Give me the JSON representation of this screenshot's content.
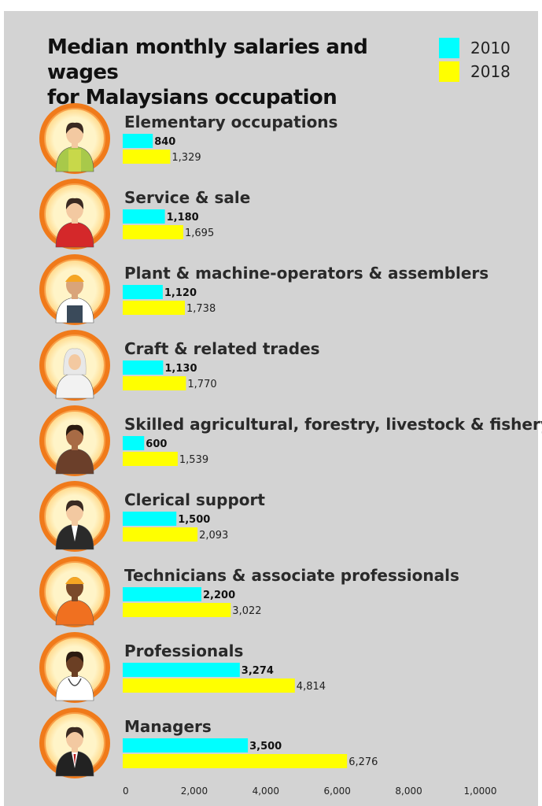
{
  "title_lines": [
    "Median monthly salaries and wages",
    "for Malaysians occupation"
  ],
  "colors": {
    "c2010": "#00ffff",
    "c2018": "#ffff00",
    "panel": "#d3d3d3"
  },
  "chart_data": {
    "type": "bar",
    "orientation": "horizontal",
    "title": "Median monthly salaries and wages for Malaysians occupation",
    "categories": [
      "Elementary occupations",
      "Service & sale",
      "Plant & machine-operators & assemblers",
      "Craft & related trades",
      "Skilled agricultural, forestry, livestock & fishery",
      "Clerical support",
      "Technicians & associate professionals",
      "Professionals",
      "Managers"
    ],
    "icons": [
      "elementary-worker-icon",
      "sales-worker-icon",
      "machine-operator-icon",
      "craft-worker-icon",
      "farmer-icon",
      "clerk-icon",
      "technician-icon",
      "doctor-icon",
      "manager-icon"
    ],
    "series": [
      {
        "name": "2010",
        "color": "#00ffff",
        "values": [
          840,
          1180,
          1120,
          1130,
          600,
          1500,
          2200,
          3274,
          3500
        ],
        "labels": [
          "840",
          "1,180",
          "1,120",
          "1,130",
          "600",
          "1,500",
          "2,200",
          "3,274",
          "3,500"
        ]
      },
      {
        "name": "2018",
        "color": "#ffff00",
        "values": [
          1329,
          1695,
          1738,
          1770,
          1539,
          2093,
          3022,
          4814,
          6276
        ],
        "labels": [
          "1,329",
          "1,695",
          "1,738",
          "1,770",
          "1,539",
          "2,093",
          "3,022",
          "4,814",
          "6,276"
        ]
      }
    ],
    "xlim": [
      0,
      10000
    ],
    "xticks": [
      0,
      2000,
      4000,
      6000,
      8000,
      10000
    ],
    "xtick_labels": [
      "0",
      "2,000",
      "4,000",
      "6,000",
      "8,000",
      "1,0000"
    ],
    "legend": "top-right",
    "grid": false
  }
}
